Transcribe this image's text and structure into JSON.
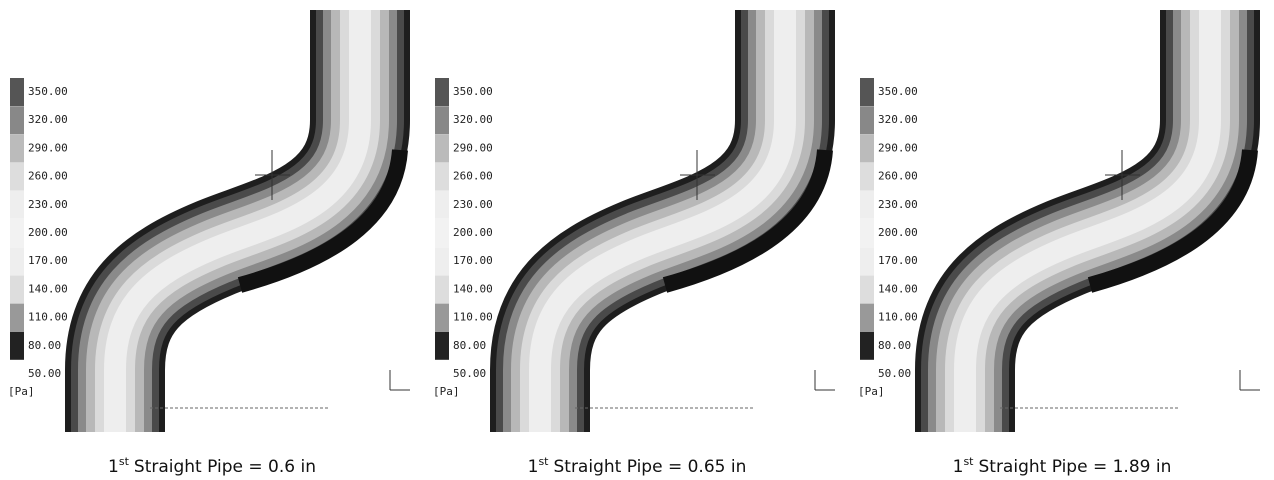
{
  "legend": {
    "labels": [
      "350.00",
      "320.00",
      "290.00",
      "260.00",
      "230.00",
      "200.00",
      "170.00",
      "140.00",
      "110.00",
      "80.00",
      "50.00"
    ],
    "unit": "[Pa]"
  },
  "panels": [
    {
      "caption": {
        "number": "1",
        "suffix": "st",
        "text": "Straight Pipe = 0.6 in"
      }
    },
    {
      "caption": {
        "number": "1",
        "suffix": "st",
        "text": "Straight Pipe = 0.65 in"
      }
    },
    {
      "caption": {
        "number": "1",
        "suffix": "st",
        "text": "Straight Pipe = 1.89 in"
      }
    }
  ]
}
